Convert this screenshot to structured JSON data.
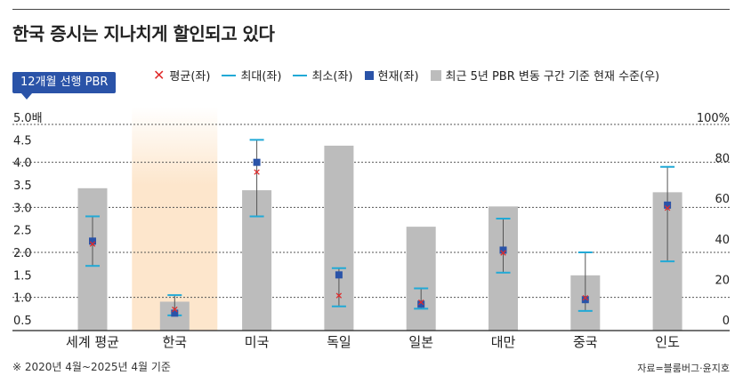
{
  "header": {
    "title": "한국 증시는 지나치게 할인되고 있다",
    "badge": "12개월 선행 PBR"
  },
  "legend": {
    "avg": "평균(좌)",
    "max": "최대(좌)",
    "min": "최소(좌)",
    "current": "현재(좌)",
    "range": "최근 5년 PBR 변동 구간 기준 현재 수준(우)"
  },
  "colors": {
    "avg": "#e02b2b",
    "maxmin": "#21a9d6",
    "current": "#2a53a8",
    "bar": "#bcbcbc",
    "highlight": "#fde6cc"
  },
  "chart_data": {
    "type": "bar",
    "categories": [
      "세계 평균",
      "한국",
      "미국",
      "독일",
      "일본",
      "대만",
      "중국",
      "인도"
    ],
    "highlight_category": "한국",
    "left_axis": {
      "ylim": [
        0.5,
        5.0
      ],
      "ticks": [
        "0.5",
        "1.0",
        "1.5",
        "2.0",
        "2.5",
        "3.0",
        "3.5",
        "4.0",
        "4.5",
        "5.0배"
      ]
    },
    "right_axis": {
      "ylim": [
        0,
        100
      ],
      "ticks": [
        "0",
        "20",
        "40",
        "60",
        "80",
        "100%"
      ]
    },
    "series": [
      {
        "name": "최근 5년 PBR 변동 구간 기준 현재 수준(우)",
        "axis": "right",
        "values": [
          65,
          9,
          64,
          86,
          46,
          56,
          22,
          63
        ]
      },
      {
        "name": "최대(좌)",
        "axis": "left",
        "values": [
          2.8,
          1.05,
          4.5,
          1.65,
          1.2,
          2.75,
          2.0,
          3.9
        ]
      },
      {
        "name": "최소(좌)",
        "axis": "left",
        "values": [
          1.7,
          0.6,
          2.8,
          0.8,
          0.75,
          1.55,
          0.7,
          1.8
        ]
      },
      {
        "name": "평균(좌)",
        "axis": "left",
        "values": [
          2.2,
          0.75,
          3.8,
          1.05,
          0.9,
          2.0,
          1.0,
          3.0
        ]
      },
      {
        "name": "현재(좌)",
        "axis": "left",
        "values": [
          2.25,
          0.65,
          4.0,
          1.5,
          0.85,
          2.05,
          0.95,
          3.05
        ]
      }
    ]
  },
  "footer": {
    "note": "※ 2020년 4월~2025년 4월 기준",
    "source": "자료=블룸버그·윤지호"
  }
}
